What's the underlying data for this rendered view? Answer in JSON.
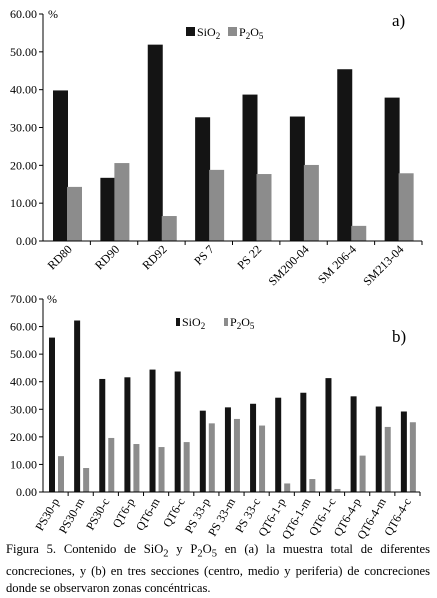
{
  "colors": {
    "sio2": "#141414",
    "p2o5": "#8c8c8c",
    "axis": "#000000"
  },
  "chart_data": [
    {
      "type": "bar",
      "panel_label": "a)",
      "unit_label": "%",
      "legend_placement": "top-center",
      "categories": [
        "RD80",
        "RD90",
        "RD92",
        "PS 7",
        "PS 22",
        "SM200-04",
        "SM 206-4",
        "SM213-04"
      ],
      "series": [
        {
          "name": "SiO2",
          "label_main": "SiO",
          "label_sub": "2",
          "values": [
            39.8,
            16.7,
            51.9,
            32.7,
            38.7,
            32.9,
            45.4,
            37.9
          ]
        },
        {
          "name": "P2O5",
          "label_main": "P",
          "label_sub1": "2",
          "label_mid": "O",
          "label_sub2": "5",
          "values": [
            14.3,
            20.6,
            6.6,
            18.8,
            17.7,
            20.1,
            4.0,
            17.9
          ]
        }
      ],
      "yticks": [
        "0.00",
        "10.00",
        "20.00",
        "30.00",
        "40.00",
        "50.00",
        "60.00"
      ],
      "ylim": [
        0,
        60
      ]
    },
    {
      "type": "bar",
      "panel_label": "b)",
      "unit_label": "%",
      "legend_placement": "top-center",
      "categories": [
        "PS30-p",
        "PS30-m",
        "PS30-c",
        "QT6-p",
        "QT6-m",
        "QT6-c",
        "PS 33-p",
        "PS 33-m",
        "PS 33-c",
        "QT6-1-p",
        "QT6-1-m",
        "QT6-1-c",
        "QT6-4-p",
        "QT6-4-m",
        "QT6-4-c"
      ],
      "series": [
        {
          "name": "SiO2",
          "label_main": "SiO",
          "label_sub": "2",
          "values": [
            56.0,
            62.2,
            41.0,
            41.6,
            44.4,
            43.7,
            29.5,
            30.7,
            32.0,
            34.2,
            36.0,
            41.3,
            34.7,
            31.0,
            29.2
          ]
        },
        {
          "name": "P2O5",
          "label_main": "P",
          "label_sub1": "2",
          "label_mid": "O",
          "label_sub2": "5",
          "values": [
            13.0,
            8.7,
            19.6,
            17.4,
            16.3,
            18.1,
            24.9,
            26.5,
            24.1,
            3.1,
            4.7,
            1.1,
            13.2,
            23.6,
            25.3
          ]
        }
      ],
      "yticks": [
        "0.00",
        "10.00",
        "20.00",
        "30.00",
        "40.00",
        "50.00",
        "60.00",
        "70.00"
      ],
      "ylim": [
        0,
        70
      ]
    }
  ],
  "caption": {
    "p1": "Figura 5. Contenido de SiO",
    "s1": "2",
    "p2": " y P",
    "s2": "2",
    "p3": "O",
    "s3": "5",
    "p4": " en (a) la muestra total de diferentes concreciones, y (b) en tres secciones (centro, medio y periferia) de concreciones donde se observaron zonas concéntricas."
  }
}
